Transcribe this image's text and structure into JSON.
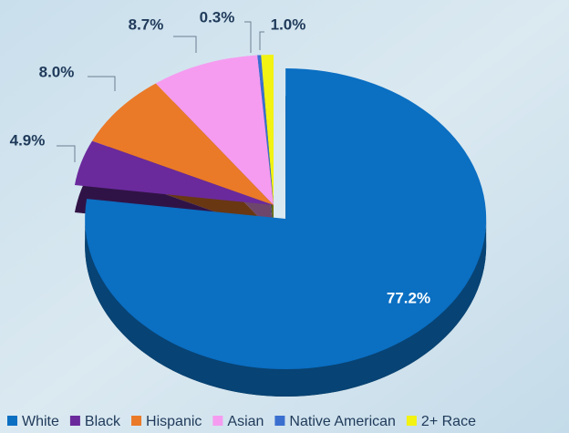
{
  "chart_data": {
    "type": "pie",
    "categories": [
      "White",
      "Black",
      "Hispanic",
      "Asian",
      "Native American",
      "2+ Race"
    ],
    "values": [
      77.2,
      4.9,
      8.0,
      8.7,
      0.3,
      1.0
    ],
    "value_labels": [
      "77.2%",
      "4.9%",
      "8.0%",
      "8.7%",
      "0.3%",
      "1.0%"
    ],
    "colors": [
      "#0b6fc2",
      "#6a2a9c",
      "#ea7a28",
      "#f59cf0",
      "#3a6fd0",
      "#f2f213"
    ],
    "legend": "bottom"
  }
}
